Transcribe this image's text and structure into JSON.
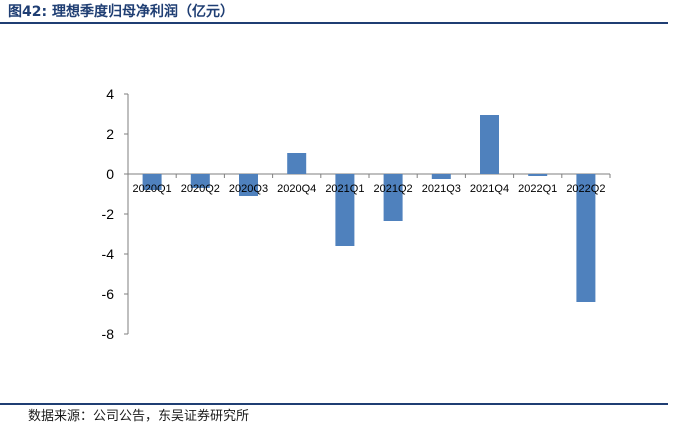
{
  "header": {
    "title": "图42:  理想季度归母净利润（亿元）"
  },
  "footer": {
    "source": "数据来源：公司公告，东吴证券研究所"
  },
  "chart_data": {
    "type": "bar",
    "title": "理想季度归母净利润（亿元）",
    "categories": [
      "2020Q1",
      "2020Q2",
      "2020Q3",
      "2020Q4",
      "2021Q1",
      "2021Q2",
      "2021Q3",
      "2021Q4",
      "2022Q1",
      "2022Q2"
    ],
    "values": [
      -0.8,
      -0.7,
      -1.1,
      1.05,
      -3.6,
      -2.35,
      -0.25,
      2.95,
      -0.1,
      -6.4
    ],
    "ylim": [
      -8,
      4
    ],
    "yticks": [
      -8,
      -6,
      -4,
      -2,
      0,
      2,
      4
    ],
    "grid": false,
    "legend": "none",
    "bar_color": "#4f81bd"
  }
}
